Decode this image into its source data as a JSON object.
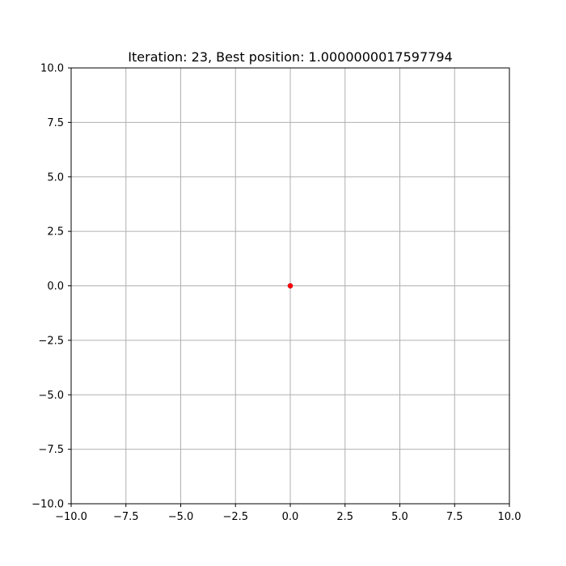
{
  "chart_data": {
    "type": "scatter",
    "title": "Iteration: 23, Best position: 1.0000000017597794",
    "xlabel": "",
    "ylabel": "",
    "xlim": [
      -10,
      10
    ],
    "ylim": [
      -10,
      10
    ],
    "xticks": [
      -10,
      -7.5,
      -5,
      -2.5,
      0,
      2.5,
      5,
      7.5,
      10
    ],
    "yticks": [
      -10,
      -7.5,
      -5,
      -2.5,
      0,
      2.5,
      5,
      7.5,
      10
    ],
    "xtick_labels": [
      "−10.0",
      "−7.5",
      "−5.0",
      "−2.5",
      "0.0",
      "2.5",
      "5.0",
      "7.5",
      "10.0"
    ],
    "ytick_labels": [
      "−10.0",
      "−7.5",
      "−5.0",
      "−2.5",
      "0.0",
      "2.5",
      "5.0",
      "7.5",
      "10.0"
    ],
    "grid": true,
    "series": [
      {
        "x": [
          0,
          0
        ],
        "y": [
          0,
          0
        ],
        "color": "#1f77b4"
      },
      {
        "x": [
          0
        ],
        "y": [
          0
        ],
        "color": "#ff0000"
      }
    ]
  }
}
